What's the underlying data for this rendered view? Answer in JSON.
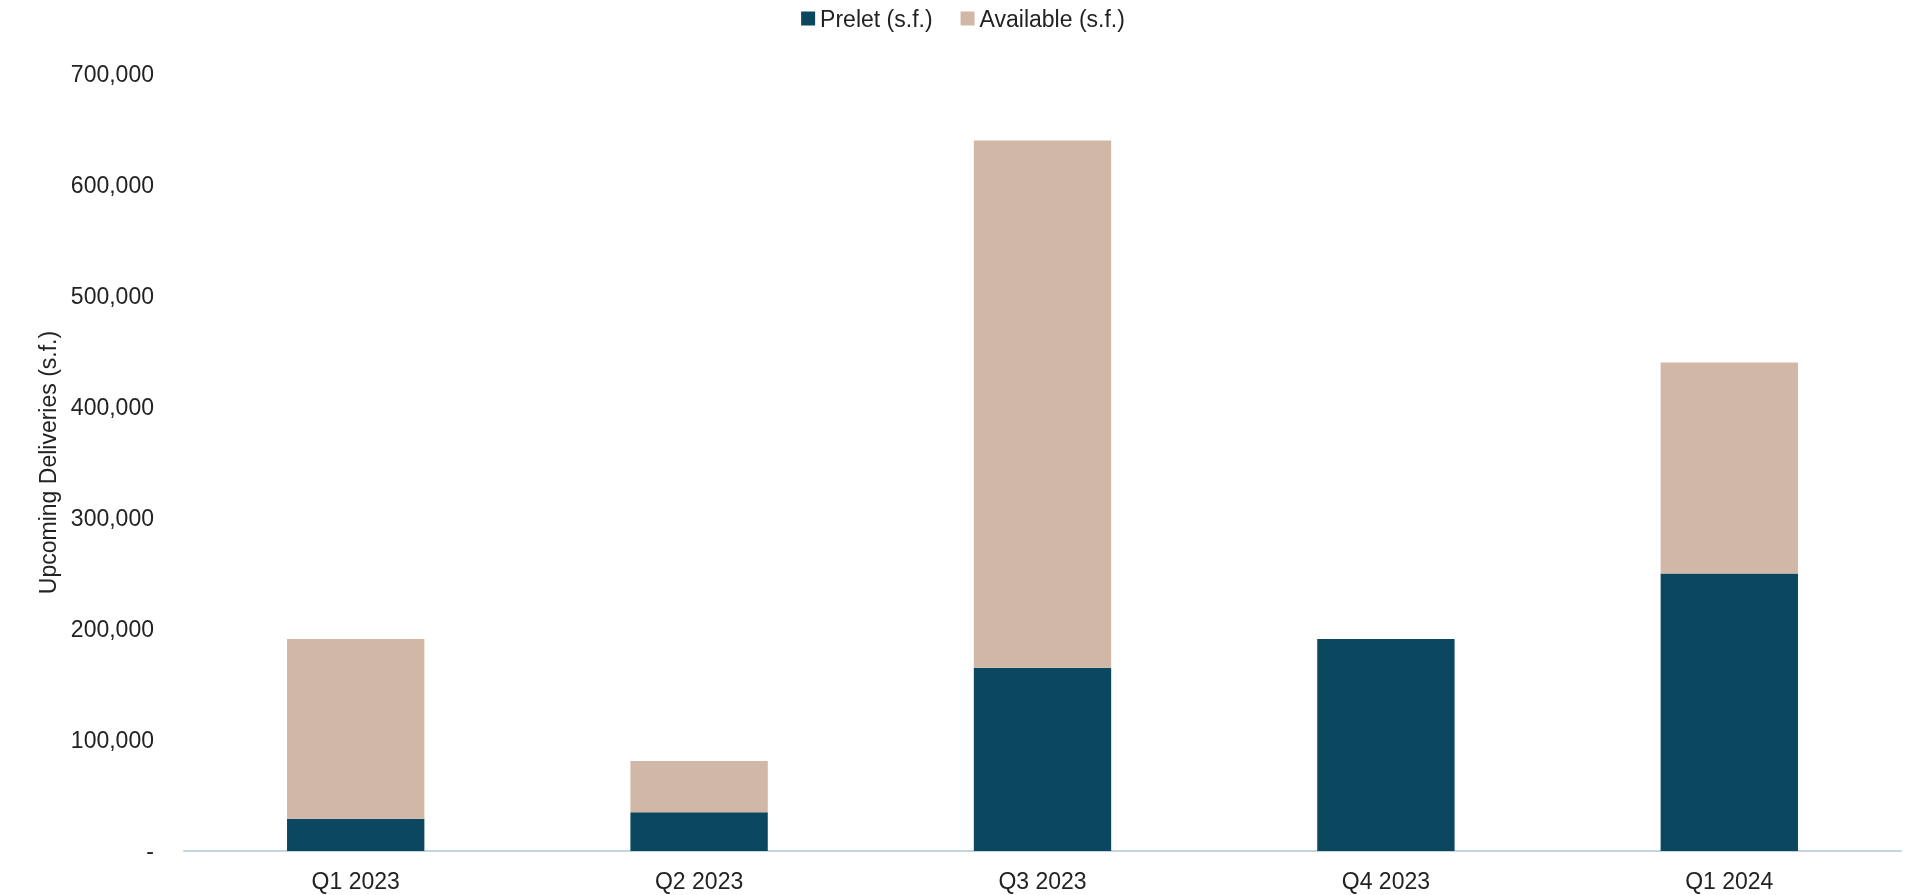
{
  "chart_data": {
    "type": "bar",
    "ylabel": "Upcoming Deliveries (s.f.)",
    "categories": [
      "Q1 2023",
      "Q2 2023",
      "Q3 2023",
      "Q4 2023",
      "Q1 2024"
    ],
    "series": [
      {
        "name": "Prelet (s.f.)",
        "color": "#0b4860",
        "values": [
          29000,
          35000,
          165000,
          191000,
          250000
        ]
      },
      {
        "name": "Available (s.f.)",
        "color": "#d1b8a6",
        "values": [
          162000,
          46000,
          475000,
          0,
          190000
        ]
      }
    ],
    "stacked": true,
    "ylim": [
      0,
      700000
    ],
    "yticks": [
      {
        "value": 0,
        "label": "-"
      },
      {
        "value": 100000,
        "label": "100,000"
      },
      {
        "value": 200000,
        "label": "200,000"
      },
      {
        "value": 300000,
        "label": "300,000"
      },
      {
        "value": 400000,
        "label": "400,000"
      },
      {
        "value": 500000,
        "label": "500,000"
      },
      {
        "value": 600000,
        "label": "600,000"
      },
      {
        "value": 700000,
        "label": "700,000"
      }
    ],
    "grid": false,
    "legend": "top"
  }
}
